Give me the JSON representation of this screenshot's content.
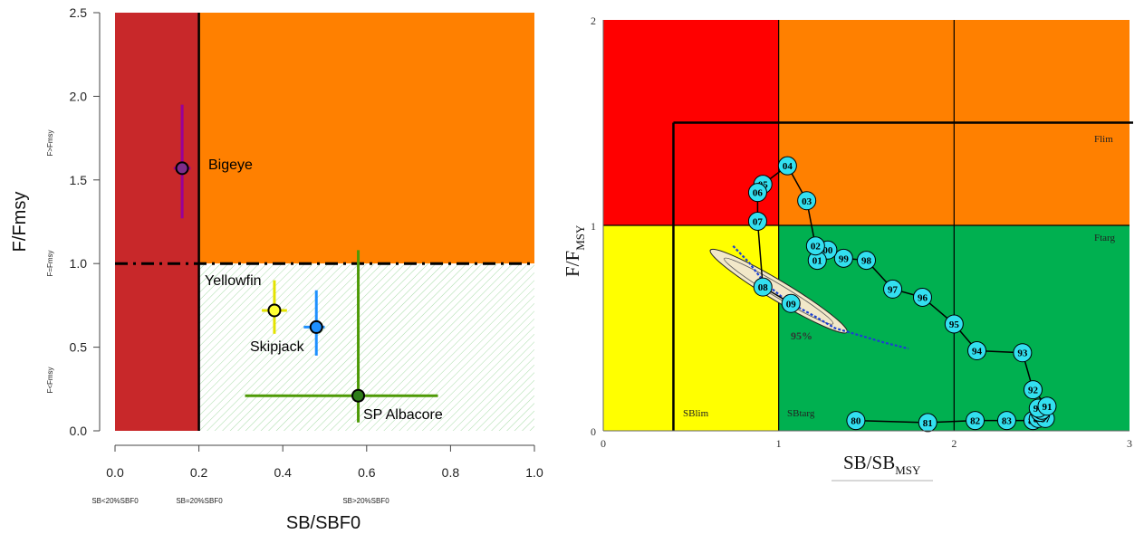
{
  "chart_data": [
    {
      "type": "scatter",
      "xlabel": "SB/SBF0",
      "ylabel": "F/Fmsy",
      "xlim": [
        0,
        1
      ],
      "ylim": [
        0,
        2.5
      ],
      "xticks": [
        "0.0",
        "0.2",
        "0.4",
        "0.6",
        "0.8",
        "1.0"
      ],
      "yticks": [
        "0.0",
        "0.5",
        "1.0",
        "1.5",
        "2.0",
        "2.5"
      ],
      "x_annotations": [
        "SB<20%SBF0",
        "SB=20%SBF0",
        "SB>20%SBF0"
      ],
      "y_annotations": [
        "F<Fmsy",
        "F=Fmsy",
        "F>Fmsy"
      ],
      "reference_lines": {
        "sb_limit": 0.2,
        "f_ratio": 1.0
      },
      "zone_colors": {
        "overfished": "#c8282a",
        "overfishing": "#ff8000",
        "healthy": "#dff5df"
      },
      "series": [
        {
          "name": "Bigeye",
          "x": 0.16,
          "y": 1.57,
          "x_range": [
            0.14,
            0.18
          ],
          "y_range": [
            1.27,
            1.95
          ],
          "color": "#7d2d8a",
          "line_color": "#990099"
        },
        {
          "name": "Yellowfin",
          "x": 0.38,
          "y": 0.72,
          "x_range": [
            0.35,
            0.41
          ],
          "y_range": [
            0.58,
            0.9
          ],
          "color": "#ffff33",
          "line_color": "#e3e300"
        },
        {
          "name": "Skipjack",
          "x": 0.48,
          "y": 0.62,
          "x_range": [
            0.45,
            0.5
          ],
          "y_range": [
            0.45,
            0.84
          ],
          "color": "#1e90ff",
          "line_color": "#1e90ff"
        },
        {
          "name": "SP Albacore",
          "x": 0.58,
          "y": 0.21,
          "x_range": [
            0.31,
            0.77
          ],
          "y_range": [
            0.05,
            1.08
          ],
          "color": "#2e7d1a",
          "line_color": "#4e9a06"
        }
      ]
    },
    {
      "type": "line",
      "xlabel": "SB/SB",
      "xlabel_sub": "MSY",
      "ylabel": "F/F",
      "ylabel_sub": "MSY",
      "xlim": [
        0,
        3
      ],
      "ylim": [
        0,
        2
      ],
      "xticks": [
        "0",
        "1",
        "2",
        "3"
      ],
      "yticks": [
        "0",
        "1",
        "2"
      ],
      "zone_labels": [
        "Flim",
        "Ftarg",
        "SBlim",
        "SBtarg"
      ],
      "reference_lines": {
        "SBlim": 0.4,
        "SBtarg": 1.0,
        "Ftarg": 1.0,
        "Flim": 1.5
      },
      "confidence_label": "95%",
      "zone_colors": {
        "red": "#ff0000",
        "orange": "#ff8000",
        "yellow": "#ffff00",
        "green": "#00b050"
      },
      "trajectory": [
        {
          "label": "80",
          "x": 1.44,
          "y": 0.05
        },
        {
          "label": "81",
          "x": 1.85,
          "y": 0.04
        },
        {
          "label": "82",
          "x": 2.12,
          "y": 0.05
        },
        {
          "label": "83",
          "x": 2.3,
          "y": 0.05
        },
        {
          "label": "84",
          "x": 2.45,
          "y": 0.05
        },
        {
          "label": "85",
          "x": 2.48,
          "y": 0.06
        },
        {
          "label": "86",
          "x": 2.5,
          "y": 0.08
        },
        {
          "label": "87",
          "x": 2.52,
          "y": 0.06
        },
        {
          "label": "88",
          "x": 2.49,
          "y": 0.09
        },
        {
          "label": "89",
          "x": 2.5,
          "y": 0.1
        },
        {
          "label": "90",
          "x": 2.48,
          "y": 0.11
        },
        {
          "label": "91",
          "x": 2.53,
          "y": 0.12
        },
        {
          "label": "92",
          "x": 2.45,
          "y": 0.2
        },
        {
          "label": "93",
          "x": 2.39,
          "y": 0.38
        },
        {
          "label": "94",
          "x": 2.13,
          "y": 0.39
        },
        {
          "label": "95",
          "x": 2.0,
          "y": 0.52
        },
        {
          "label": "96",
          "x": 1.82,
          "y": 0.65
        },
        {
          "label": "97",
          "x": 1.65,
          "y": 0.69
        },
        {
          "label": "98",
          "x": 1.5,
          "y": 0.83
        },
        {
          "label": "99",
          "x": 1.37,
          "y": 0.84
        },
        {
          "label": "00",
          "x": 1.28,
          "y": 0.88
        },
        {
          "label": "01",
          "x": 1.22,
          "y": 0.83
        },
        {
          "label": "02",
          "x": 1.21,
          "y": 0.9
        },
        {
          "label": "03",
          "x": 1.16,
          "y": 1.12
        },
        {
          "label": "04",
          "x": 1.05,
          "y": 1.29
        },
        {
          "label": "05",
          "x": 0.91,
          "y": 1.2
        },
        {
          "label": "06",
          "x": 0.88,
          "y": 1.16
        },
        {
          "label": "07",
          "x": 0.88,
          "y": 1.02
        },
        {
          "label": "08",
          "x": 0.91,
          "y": 0.7
        },
        {
          "label": "09",
          "x": 1.07,
          "y": 0.62
        }
      ]
    }
  ]
}
